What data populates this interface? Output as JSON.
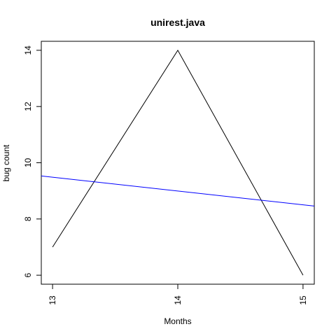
{
  "chart_data": {
    "type": "line",
    "title": "unirest.java",
    "xlabel": "Months",
    "ylabel": "bug count",
    "xlim": [
      12.91,
      15.09
    ],
    "ylim": [
      5.68,
      14.32
    ],
    "xticks": [
      13,
      14,
      15
    ],
    "yticks": [
      6,
      8,
      10,
      12,
      14
    ],
    "grid": false,
    "series": [
      {
        "x": [
          13,
          14,
          15
        ],
        "y": [
          7,
          14,
          6
        ],
        "color": "#000000"
      }
    ],
    "trend_line": {
      "x": [
        12.91,
        15.09
      ],
      "y": [
        9.53,
        8.46
      ],
      "color": "#0000ff"
    }
  }
}
